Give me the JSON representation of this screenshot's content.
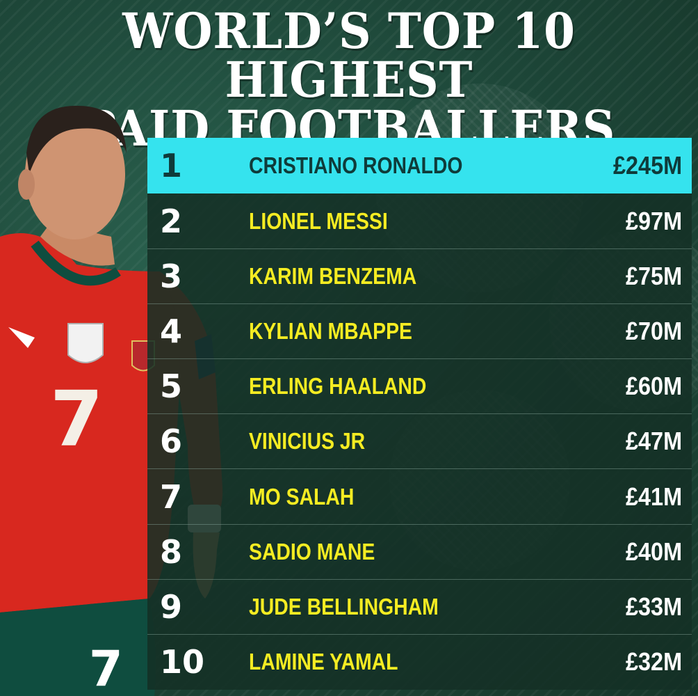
{
  "title": {
    "line1": "WORLD’S TOP 10 HIGHEST",
    "line2": "PAID FOOTBALLERS"
  },
  "shirt_number": "7",
  "colors": {
    "background": "#1f4a3c",
    "highlight_row": "#35e3ee",
    "name_text": "#f5ec22",
    "shirt_red": "#d8281f",
    "shirt_green": "#0f4d3f"
  },
  "rankings": [
    {
      "rank": "1",
      "name": "CRISTIANO RONALDO",
      "pay": "£245M"
    },
    {
      "rank": "2",
      "name": "LIONEL MESSI",
      "pay": "£97M"
    },
    {
      "rank": "3",
      "name": "KARIM BENZEMA",
      "pay": "£75M"
    },
    {
      "rank": "4",
      "name": "KYLIAN MBAPPE",
      "pay": "£70M"
    },
    {
      "rank": "5",
      "name": "ERLING HAALAND",
      "pay": "£60M"
    },
    {
      "rank": "6",
      "name": "VINICIUS JR",
      "pay": "£47M"
    },
    {
      "rank": "7",
      "name": "MO SALAH",
      "pay": "£41M"
    },
    {
      "rank": "8",
      "name": "SADIO MANE",
      "pay": "£40M"
    },
    {
      "rank": "9",
      "name": "JUDE BELLINGHAM",
      "pay": "£33M"
    },
    {
      "rank": "10",
      "name": "LAMINE YAMAL",
      "pay": "£32M"
    }
  ]
}
